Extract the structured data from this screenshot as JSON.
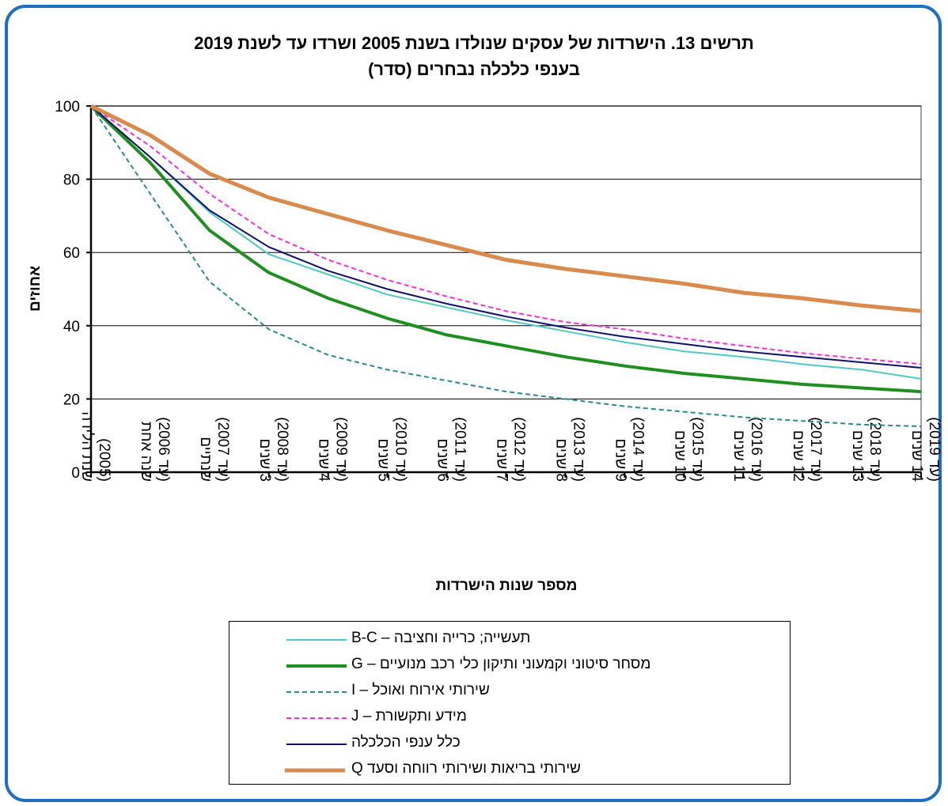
{
  "title": {
    "line1": "תרשים 13. הישרדות של עסקים שנולדו בשנת 2005 ושרדו עד לשנת 2019",
    "line2": "בענפי כלכלה נבחרים (סדר)"
  },
  "chart_data": {
    "type": "line",
    "ylabel": "אחוזים",
    "xlabel": "מספר שנות הישרדות",
    "ylim": [
      0,
      100
    ],
    "yticks": [
      0,
      20,
      40,
      60,
      80,
      100
    ],
    "grid": true,
    "legend_position": "bottom",
    "categories": [
      [
        "שנת הלידה",
        "(2005)"
      ],
      [
        "שנה אחת",
        "(עד 2006)"
      ],
      [
        "שנתיים",
        "(עד 2007)"
      ],
      [
        "3 שנים",
        "(עד 2008)"
      ],
      [
        "4 שנים",
        "(עד 2009)"
      ],
      [
        "5 שנים",
        "(עד 2010)"
      ],
      [
        "6 שנים",
        "(עד 2011)"
      ],
      [
        "7 שנים",
        "(עד 2012)"
      ],
      [
        "8 שנים",
        "(עד 2013)"
      ],
      [
        "9 שנים",
        "(עד 2014)"
      ],
      [
        "10 שנים",
        "(עד 2015)"
      ],
      [
        "11 שנים",
        "(עד 2016)"
      ],
      [
        "12 שנים",
        "(עד 2017)"
      ],
      [
        "13 שנים",
        "(עד 2018)"
      ],
      [
        "14 שנים",
        "(עד 2019)"
      ]
    ],
    "series": [
      {
        "name": "תעשייה; כרייה וחציבה – B-C",
        "color": "#4fc8c6",
        "width": 2,
        "dash": "",
        "values": [
          100,
          86,
          71,
          59.5,
          54,
          48.5,
          45,
          41.5,
          38.5,
          35.5,
          33,
          31.5,
          29.5,
          28,
          25.5
        ]
      },
      {
        "name": "מסחר סיטוני וקמעוני ותיקון כלי רכב מנועיים – G",
        "color": "#1f8f1f",
        "width": 4,
        "dash": "",
        "values": [
          100,
          84.5,
          66,
          54.5,
          47.5,
          42,
          37.5,
          34.5,
          31.5,
          29,
          27,
          25.5,
          24,
          23,
          22
        ]
      },
      {
        "name": "שירותי אירוח ואוכל – I",
        "color": "#2a8a88",
        "width": 2,
        "dash": "6,4",
        "values": [
          100,
          76,
          52,
          39,
          32,
          28,
          25,
          22,
          20,
          18,
          16.5,
          15,
          14,
          13,
          12.5
        ]
      },
      {
        "name": "מידע ותקשורת – J",
        "color": "#ff2bd6",
        "width": 2,
        "dash": "6,4",
        "values": [
          100,
          89,
          76,
          65,
          58,
          52.5,
          48,
          44,
          41,
          39,
          36.5,
          34.5,
          32.5,
          31,
          29.5
        ]
      },
      {
        "name": "כלל ענפי הכלכלה",
        "color": "#10106e",
        "width": 2,
        "dash": "",
        "values": [
          100,
          86,
          71.5,
          61.5,
          55,
          50,
          46,
          42.5,
          39.5,
          37,
          35,
          33,
          31.5,
          30,
          28.5
        ]
      },
      {
        "name": "שירותי בריאות ושירותי רווחה וסעד Q",
        "color": "#d98b4e",
        "width": 5,
        "dash": "",
        "values": [
          100,
          92,
          81.5,
          75,
          70.5,
          66,
          62,
          58,
          55.5,
          53.5,
          51.5,
          49,
          47.5,
          45.5,
          44
        ]
      }
    ]
  }
}
